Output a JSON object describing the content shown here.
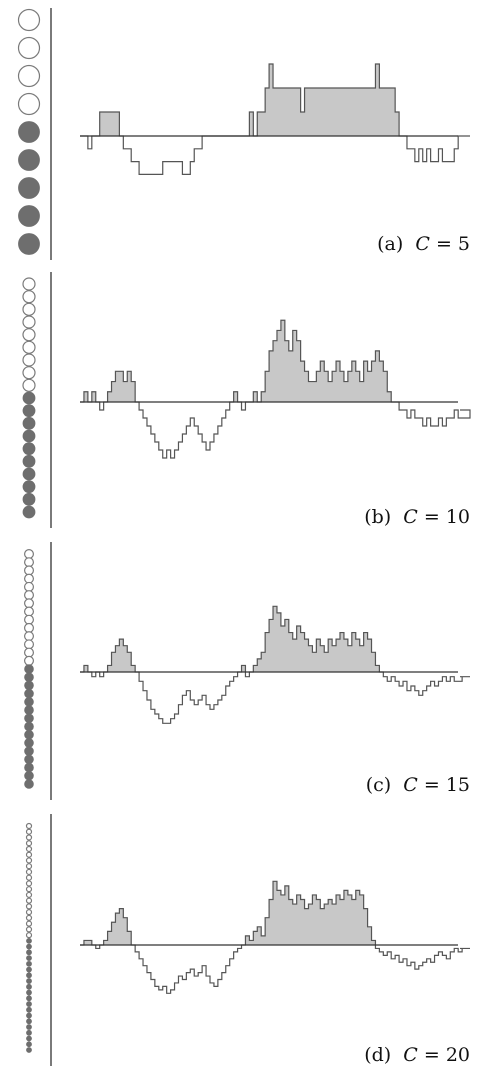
{
  "figure": {
    "panels": [
      {
        "caption_prefix": "(a)",
        "caption_var": "C",
        "caption_rest": " = 5"
      },
      {
        "caption_prefix": "(b)",
        "caption_var": "C",
        "caption_rest": " = 10"
      },
      {
        "caption_prefix": "(c)",
        "caption_var": "C",
        "caption_rest": " = 15"
      },
      {
        "caption_prefix": "(d)",
        "caption_var": "C",
        "caption_rest": " = 20"
      }
    ],
    "colors": {
      "filled_dot": "#6e6e6e",
      "open_dot_stroke": "#7a7a7a",
      "positive_fill": "#c8c8c8",
      "line": "#555555",
      "baseline": "#333333",
      "axis": "#333333"
    }
  },
  "chart_data": [
    {
      "type": "area",
      "C": 5,
      "levels": {
        "open": 4,
        "filled": 5
      },
      "ylim": [
        -5,
        4
      ],
      "x": [
        0,
        1,
        2,
        3,
        4,
        5,
        6,
        7,
        8,
        9,
        10,
        11,
        12,
        13,
        14,
        15,
        16,
        17,
        18,
        19,
        20,
        21,
        22,
        23,
        24,
        25,
        26,
        27,
        28,
        29,
        30,
        31,
        32,
        33,
        34,
        35,
        36,
        37,
        38,
        39,
        40,
        41,
        42,
        43,
        44,
        45,
        46,
        47,
        48,
        49,
        50,
        51,
        52,
        53,
        54,
        55,
        56,
        57,
        58,
        59,
        60,
        61,
        62,
        63,
        64,
        65,
        66,
        67,
        68,
        69,
        70,
        71,
        72,
        73,
        74,
        75,
        76,
        77,
        78,
        79,
        80,
        81,
        82,
        83,
        84,
        85,
        86,
        87,
        88,
        89,
        90,
        91,
        92,
        93,
        94,
        95,
        96,
        97,
        98,
        99
      ],
      "y": [
        0,
        0,
        -1,
        0,
        0,
        1,
        1,
        1,
        1,
        1,
        0,
        -1,
        -1,
        -2,
        -2,
        -3,
        -3,
        -3,
        -3,
        -3,
        -3,
        -2,
        -2,
        -2,
        -2,
        -2,
        -3,
        -3,
        -2,
        -1,
        -1,
        0,
        0,
        0,
        0,
        0,
        0,
        0,
        0,
        0,
        0,
        0,
        0,
        1,
        0,
        1,
        1,
        2,
        3,
        2,
        2,
        2,
        2,
        2,
        2,
        2,
        1,
        2,
        2,
        2,
        2,
        2,
        2,
        2,
        2,
        2,
        2,
        2,
        2,
        2,
        2,
        2,
        2,
        2,
        2,
        3,
        2,
        2,
        2,
        2,
        1,
        0,
        0,
        -1,
        -1,
        -2,
        -1,
        -2,
        -1,
        -2,
        -2,
        -1,
        -2,
        -2,
        -2,
        -1,
        0,
        0,
        0,
        0
      ]
    },
    {
      "type": "area",
      "C": 10,
      "levels": {
        "open": 9,
        "filled": 10
      },
      "ylim": [
        -10,
        9
      ],
      "x": [
        0,
        1,
        2,
        3,
        4,
        5,
        6,
        7,
        8,
        9,
        10,
        11,
        12,
        13,
        14,
        15,
        16,
        17,
        18,
        19,
        20,
        21,
        22,
        23,
        24,
        25,
        26,
        27,
        28,
        29,
        30,
        31,
        32,
        33,
        34,
        35,
        36,
        37,
        38,
        39,
        40,
        41,
        42,
        43,
        44,
        45,
        46,
        47,
        48,
        49,
        50,
        51,
        52,
        53,
        54,
        55,
        56,
        57,
        58,
        59,
        60,
        61,
        62,
        63,
        64,
        65,
        66,
        67,
        68,
        69,
        70,
        71,
        72,
        73,
        74,
        75,
        76,
        77,
        78,
        79,
        80,
        81,
        82,
        83,
        84,
        85,
        86,
        87,
        88,
        89,
        90,
        91,
        92,
        93,
        94,
        95,
        96,
        97,
        98,
        99
      ],
      "y": [
        0,
        1,
        0,
        1,
        0,
        -1,
        0,
        1,
        2,
        3,
        3,
        2,
        3,
        2,
        0,
        -1,
        -2,
        -3,
        -4,
        -5,
        -6,
        -7,
        -6,
        -7,
        -6,
        -5,
        -4,
        -3,
        -2,
        -3,
        -4,
        -5,
        -6,
        -5,
        -4,
        -3,
        -2,
        -1,
        0,
        1,
        0,
        -1,
        0,
        0,
        1,
        0,
        1,
        3,
        5,
        6,
        7,
        8,
        6,
        5,
        7,
        6,
        4,
        3,
        2,
        2,
        3,
        4,
        3,
        2,
        3,
        4,
        3,
        2,
        3,
        4,
        3,
        2,
        4,
        3,
        4,
        5,
        4,
        3,
        1,
        0,
        0,
        -1,
        -1,
        -2,
        -1,
        -2,
        -2,
        -3,
        -2,
        -3,
        -3,
        -2,
        -3,
        -2,
        -2,
        -1,
        -2,
        -2,
        -2,
        -1
      ]
    },
    {
      "type": "area",
      "C": 15,
      "levels": {
        "open": 14,
        "filled": 15
      },
      "ylim": [
        -15,
        14
      ],
      "x": [
        0,
        1,
        2,
        3,
        4,
        5,
        6,
        7,
        8,
        9,
        10,
        11,
        12,
        13,
        14,
        15,
        16,
        17,
        18,
        19,
        20,
        21,
        22,
        23,
        24,
        25,
        26,
        27,
        28,
        29,
        30,
        31,
        32,
        33,
        34,
        35,
        36,
        37,
        38,
        39,
        40,
        41,
        42,
        43,
        44,
        45,
        46,
        47,
        48,
        49,
        50,
        51,
        52,
        53,
        54,
        55,
        56,
        57,
        58,
        59,
        60,
        61,
        62,
        63,
        64,
        65,
        66,
        67,
        68,
        69,
        70,
        71,
        72,
        73,
        74,
        75,
        76,
        77,
        78,
        79,
        80,
        81,
        82,
        83,
        84,
        85,
        86,
        87,
        88,
        89,
        90,
        91,
        92,
        93,
        94,
        95,
        96,
        97,
        98,
        99
      ],
      "y": [
        0,
        1,
        0,
        -1,
        0,
        -1,
        0,
        1,
        3,
        4,
        5,
        4,
        3,
        1,
        0,
        -2,
        -4,
        -6,
        -8,
        -9,
        -10,
        -11,
        -11,
        -10,
        -9,
        -7,
        -5,
        -4,
        -6,
        -7,
        -6,
        -5,
        -7,
        -8,
        -7,
        -6,
        -5,
        -3,
        -2,
        -1,
        0,
        1,
        -1,
        0,
        1,
        2,
        3,
        6,
        8,
        10,
        9,
        7,
        8,
        6,
        5,
        7,
        6,
        5,
        4,
        3,
        5,
        4,
        3,
        5,
        4,
        5,
        6,
        5,
        4,
        6,
        5,
        4,
        6,
        5,
        3,
        1,
        0,
        -1,
        -2,
        -1,
        -2,
        -3,
        -2,
        -4,
        -3,
        -4,
        -5,
        -4,
        -3,
        -2,
        -3,
        -2,
        -1,
        -2,
        -1,
        -2,
        -2,
        -1,
        -1,
        -1
      ]
    },
    {
      "type": "area",
      "C": 20,
      "levels": {
        "open": 20,
        "filled": 20
      },
      "ylim": [
        -20,
        20
      ],
      "x": [
        0,
        1,
        2,
        3,
        4,
        5,
        6,
        7,
        8,
        9,
        10,
        11,
        12,
        13,
        14,
        15,
        16,
        17,
        18,
        19,
        20,
        21,
        22,
        23,
        24,
        25,
        26,
        27,
        28,
        29,
        30,
        31,
        32,
        33,
        34,
        35,
        36,
        37,
        38,
        39,
        40,
        41,
        42,
        43,
        44,
        45,
        46,
        47,
        48,
        49,
        50,
        51,
        52,
        53,
        54,
        55,
        56,
        57,
        58,
        59,
        60,
        61,
        62,
        63,
        64,
        65,
        66,
        67,
        68,
        69,
        70,
        71,
        72,
        73,
        74,
        75,
        76,
        77,
        78,
        79,
        80,
        81,
        82,
        83,
        84,
        85,
        86,
        87,
        88,
        89,
        90,
        91,
        92,
        93,
        94,
        95,
        96,
        97,
        98,
        99
      ],
      "y": [
        0,
        1,
        1,
        0,
        -1,
        0,
        1,
        3,
        5,
        7,
        8,
        6,
        3,
        0,
        -2,
        -4,
        -6,
        -8,
        -10,
        -12,
        -13,
        -12,
        -14,
        -13,
        -11,
        -9,
        -10,
        -8,
        -7,
        -9,
        -8,
        -6,
        -9,
        -11,
        -12,
        -10,
        -8,
        -6,
        -4,
        -2,
        -1,
        0,
        2,
        1,
        3,
        4,
        2,
        6,
        10,
        14,
        12,
        11,
        13,
        10,
        9,
        11,
        10,
        8,
        9,
        11,
        10,
        8,
        9,
        10,
        9,
        11,
        10,
        12,
        11,
        10,
        12,
        11,
        8,
        4,
        1,
        -1,
        -2,
        -3,
        -2,
        -4,
        -3,
        -5,
        -4,
        -6,
        -5,
        -7,
        -6,
        -5,
        -4,
        -5,
        -3,
        -2,
        -3,
        -4,
        -2,
        -1,
        -2,
        -1,
        -1,
        -1
      ]
    }
  ]
}
